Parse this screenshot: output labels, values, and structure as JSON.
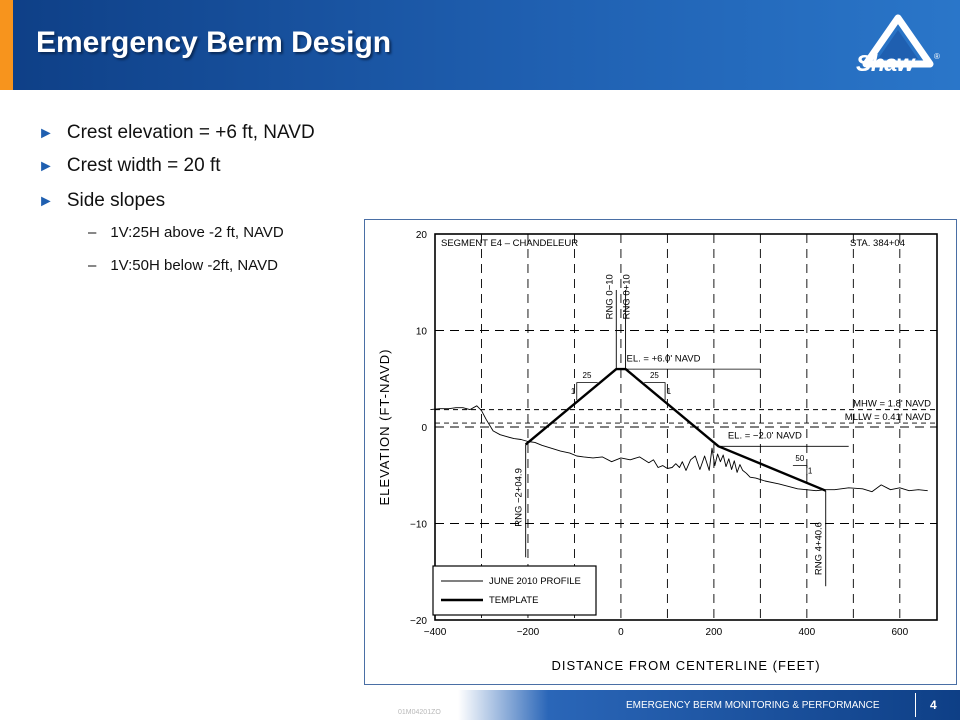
{
  "slide": {
    "title": "Emergency Berm Design",
    "logo_text": "Shaw",
    "logo_reg": "®",
    "footer_text": "EMERGENCY BERM MONITORING & PERFORMANCE",
    "page_number": "4",
    "small_code": "01M04201ZO"
  },
  "bullets": [
    {
      "text": "Crest elevation = +6 ft, NAVD"
    },
    {
      "text": "Crest width = 20 ft"
    },
    {
      "text": "Side slopes",
      "subs": [
        "1V:25H above -2 ft, NAVD",
        "1V:50H below -2ft, NAVD"
      ]
    }
  ],
  "bullet_marker": "►",
  "sub_marker": "–",
  "colors": {
    "header_dark": "#0e3f86",
    "header_light": "#2a76c9",
    "accent": "#f7941d"
  },
  "chart_data": {
    "type": "line",
    "xlabel": "DISTANCE FROM CENTERLINE (FEET)",
    "ylabel": "ELEVATION (FT-NAVD)",
    "xlim": [
      -400,
      680
    ],
    "ylim": [
      -20,
      20
    ],
    "x_ticks": [
      "−400",
      "−200",
      "0",
      "200",
      "400",
      "600"
    ],
    "y_ticks": [
      "20",
      "10",
      "0",
      "−10",
      "−20"
    ],
    "x_tick_values": [
      -400,
      -200,
      0,
      200,
      400,
      600
    ],
    "y_tick_values": [
      20,
      10,
      0,
      -10,
      -20
    ],
    "grid": "dashed",
    "title_left": "SEGMENT E4 – CHANDELEUR",
    "title_right": "STA. 384+04",
    "legend_placement": "bottom-left",
    "series": [
      {
        "name": "JUNE 2010 PROFILE",
        "style": "thin",
        "x": [
          -410,
          -390,
          -370,
          -355,
          -340,
          -325,
          -310,
          -300,
          -290,
          -275,
          -260,
          -245,
          -230,
          -215,
          -200,
          -185,
          -170,
          -150,
          -130,
          -110,
          -95,
          -80,
          -60,
          -40,
          -20,
          0,
          20,
          40,
          60,
          70,
          80,
          90,
          100,
          110,
          118,
          126,
          132,
          140,
          150,
          160,
          170,
          180,
          190,
          196,
          202,
          208,
          214,
          220,
          226,
          232,
          238,
          244,
          250,
          256,
          262,
          270,
          278,
          290,
          310,
          340,
          380,
          420,
          440,
          460,
          490,
          520,
          540,
          560,
          580,
          600,
          620,
          640,
          660
        ],
        "y": [
          1.8,
          1.9,
          1.9,
          2.0,
          2.0,
          1.8,
          2.2,
          1.7,
          0.8,
          -0.4,
          -0.8,
          -1.0,
          -1.2,
          -1.3,
          -1.5,
          -1.6,
          -1.9,
          -2.2,
          -2.5,
          -2.7,
          -3.0,
          -3.1,
          -3.2,
          -3.1,
          -3.6,
          -3.2,
          -3.4,
          -3.1,
          -3.7,
          -3.4,
          -4.2,
          -4.0,
          -4.3,
          -4.2,
          -3.8,
          -4.2,
          -3.6,
          -4.5,
          -3.4,
          -3.0,
          -4.4,
          -3.0,
          -4.5,
          -2.2,
          -4.0,
          -2.8,
          -3.6,
          -2.9,
          -4.1,
          -3.3,
          -4.4,
          -3.5,
          -4.7,
          -3.9,
          -4.5,
          -4.8,
          -5.2,
          -5.3,
          -5.6,
          -5.9,
          -6.4,
          -6.6,
          -6.5,
          -6.5,
          -6.3,
          -6.4,
          -6.7,
          -6.0,
          -6.5,
          -6.3,
          -6.6,
          -6.5,
          -6.6
        ]
      },
      {
        "name": "TEMPLATE",
        "style": "thick",
        "x": [
          -204.9,
          -10,
          10,
          210,
          440.6
        ],
        "y": [
          -1.8,
          6.0,
          6.0,
          -2.0,
          -6.6
        ]
      }
    ],
    "reference_lines": [
      {
        "label": "MHW = 1.8' NAVD",
        "y": 1.8
      },
      {
        "label": "MLLW = 0.41' NAVD",
        "y": 0.41
      }
    ],
    "vertical_markers": [
      {
        "label": "RNG 0−10",
        "x": -10
      },
      {
        "label": "RNG 0+10",
        "x": 10
      },
      {
        "label": "RNG −2+04.9",
        "x": -204.9
      },
      {
        "label": "RNG 4+40.6",
        "x": 440.6
      }
    ],
    "annotations": [
      {
        "text": "EL. = +6.0' NAVD"
      },
      {
        "text": "EL. = −2.0' NAVD"
      }
    ],
    "slope_labels": {
      "one": "1",
      "twenty_five": "25",
      "fifty": "50"
    }
  }
}
